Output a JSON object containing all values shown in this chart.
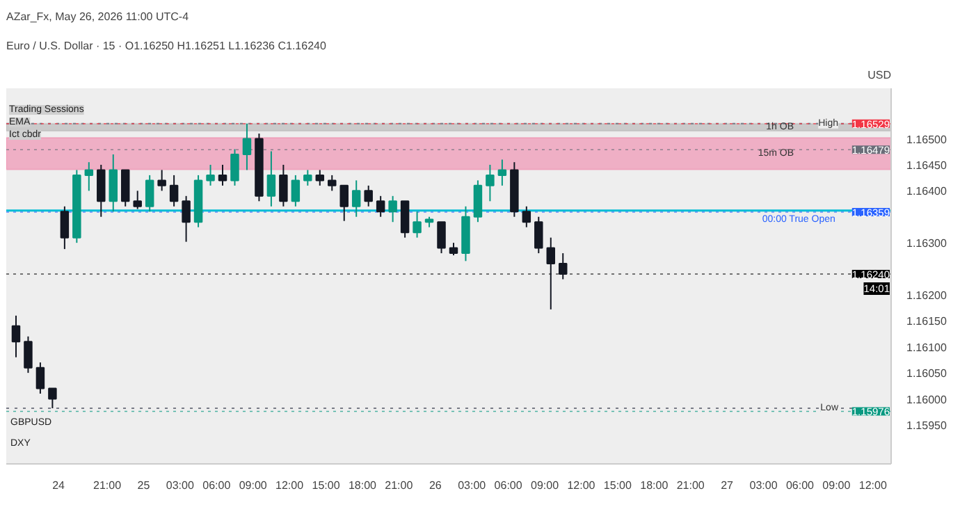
{
  "chart_data": {
    "type": "candlestick",
    "title": "Euro / U.S. Dollar · 15 ·  O1.16250 H1.16251 L1.16236 C1.16240",
    "subtitle": "AZar_Fx, May 26, 2026 11:00 UTC-4",
    "annotations": [
      "Trading Sessions",
      "EMA",
      "Ict cbdr",
      "USD",
      "GBPUSD",
      "DXY",
      "14:01",
      "00:00 True Open"
    ],
    "x": [
      "2026-05-24T13:30",
      "2026-05-24T14:30",
      "2026-05-24T15:30",
      "2026-05-24T16:30",
      "2026-05-24T17:30",
      "2026-05-24T18:30",
      "2026-05-24T19:30",
      "2026-05-24T20:30",
      "2026-05-24T21:30",
      "2026-05-24T22:30",
      "2026-05-24T23:30",
      "2026-05-25T00:30",
      "2026-05-25T01:30",
      "2026-05-25T02:30",
      "2026-05-25T03:30",
      "2026-05-25T04:30",
      "2026-05-25T05:30",
      "2026-05-25T06:30",
      "2026-05-25T07:30",
      "2026-05-25T08:30",
      "2026-05-25T09:30",
      "2026-05-25T10:30",
      "2026-05-25T11:30",
      "2026-05-25T12:30",
      "2026-05-25T13:30",
      "2026-05-25T14:30",
      "2026-05-25T15:30",
      "2026-05-25T16:30",
      "2026-05-25T17:30",
      "2026-05-25T18:30",
      "2026-05-25T19:30",
      "2026-05-25T20:30",
      "2026-05-25T21:30",
      "2026-05-25T22:30",
      "2026-05-25T23:30",
      "2026-05-26T00:30",
      "2026-05-26T01:30",
      "2026-05-26T02:30",
      "2026-05-26T03:30",
      "2026-05-26T04:30",
      "2026-05-26T05:30",
      "2026-05-26T06:30",
      "2026-05-26T07:30",
      "2026-05-26T08:30",
      "2026-05-26T09:30",
      "2026-05-26T10:30"
    ],
    "ohlc": [
      [
        1.1614,
        1.1616,
        1.1608,
        1.1611
      ],
      [
        1.1611,
        1.1612,
        1.1605,
        1.1606
      ],
      [
        1.1606,
        1.1607,
        1.1601,
        1.1602
      ],
      [
        1.1602,
        1.1602,
        1.15982,
        1.16
      ],
      [
        1.1636,
        1.1637,
        1.16288,
        1.1631
      ],
      [
        1.1631,
        1.1644,
        1.163,
        1.1643
      ],
      [
        1.1643,
        1.16455,
        1.164,
        1.1644
      ],
      [
        1.1644,
        1.1645,
        1.1635,
        1.1638
      ],
      [
        1.1638,
        1.1647,
        1.1636,
        1.1644
      ],
      [
        1.1644,
        1.1644,
        1.1637,
        1.1638
      ],
      [
        1.1638,
        1.164,
        1.16365,
        1.1637
      ],
      [
        1.1637,
        1.1643,
        1.1636,
        1.1642
      ],
      [
        1.1642,
        1.1644,
        1.164,
        1.1641
      ],
      [
        1.1641,
        1.1643,
        1.1637,
        1.1638
      ],
      [
        1.1638,
        1.1639,
        1.16302,
        1.1634
      ],
      [
        1.1634,
        1.1643,
        1.1633,
        1.1642
      ],
      [
        1.1642,
        1.1645,
        1.1641,
        1.1643
      ],
      [
        1.1643,
        1.1645,
        1.1641,
        1.1642
      ],
      [
        1.1642,
        1.1648,
        1.1641,
        1.1647
      ],
      [
        1.1647,
        1.16529,
        1.1644,
        1.165
      ],
      [
        1.165,
        1.1651,
        1.1638,
        1.1639
      ],
      [
        1.1639,
        1.16476,
        1.1637,
        1.1643
      ],
      [
        1.1643,
        1.1645,
        1.1637,
        1.1638
      ],
      [
        1.1638,
        1.1643,
        1.1637,
        1.1642
      ],
      [
        1.1642,
        1.1644,
        1.1641,
        1.1643
      ],
      [
        1.1643,
        1.1644,
        1.1641,
        1.1642
      ],
      [
        1.1642,
        1.1643,
        1.164,
        1.1641
      ],
      [
        1.1641,
        1.1641,
        1.16342,
        1.1637
      ],
      [
        1.1637,
        1.1642,
        1.1635,
        1.164
      ],
      [
        1.164,
        1.1641,
        1.1637,
        1.1638
      ],
      [
        1.1638,
        1.1639,
        1.1635,
        1.1636
      ],
      [
        1.1636,
        1.1639,
        1.1634,
        1.1638
      ],
      [
        1.1638,
        1.1638,
        1.1631,
        1.1632
      ],
      [
        1.1632,
        1.1636,
        1.1631,
        1.1634
      ],
      [
        1.1634,
        1.1635,
        1.1633,
        1.16345
      ],
      [
        1.1634,
        1.1634,
        1.1628,
        1.1629
      ],
      [
        1.1629,
        1.163,
        1.16276,
        1.1628
      ],
      [
        1.1628,
        1.1637,
        1.16265,
        1.1635
      ],
      [
        1.1635,
        1.1642,
        1.1634,
        1.1641
      ],
      [
        1.1641,
        1.1645,
        1.1638,
        1.1643
      ],
      [
        1.1643,
        1.1646,
        1.1641,
        1.1644
      ],
      [
        1.1644,
        1.16455,
        1.1635,
        1.1636
      ],
      [
        1.1636,
        1.1637,
        1.1633,
        1.1634
      ],
      [
        1.1634,
        1.1635,
        1.1628,
        1.1629
      ],
      [
        1.1629,
        1.1631,
        1.16172,
        1.1626
      ],
      [
        1.1626,
        1.1628,
        1.1623,
        1.1624
      ]
    ],
    "colors": [
      "#131722",
      "#131722",
      "#131722",
      "#131722",
      "#131722",
      "#089981",
      "#089981",
      "#131722",
      "#089981",
      "#131722",
      "#131722",
      "#089981",
      "#131722",
      "#131722",
      "#131722",
      "#089981",
      "#089981",
      "#131722",
      "#089981",
      "#089981",
      "#131722",
      "#089981",
      "#131722",
      "#089981",
      "#089981",
      "#131722",
      "#131722",
      "#131722",
      "#089981",
      "#131722",
      "#131722",
      "#089981",
      "#131722",
      "#089981",
      "#089981",
      "#131722",
      "#131722",
      "#089981",
      "#089981",
      "#089981",
      "#089981",
      "#131722",
      "#131722",
      "#131722",
      "#131722",
      "#131722"
    ],
    "xlim": [
      "2026-05-24T12:42",
      "2026-05-27T13:30"
    ],
    "xticks": [
      {
        "value": "2026-05-24T17:00",
        "label": "24"
      },
      {
        "value": "2026-05-24T21:00",
        "label": "21:00"
      },
      {
        "value": "2026-05-25T00:00",
        "label": "25"
      },
      {
        "value": "2026-05-25T03:00",
        "label": "03:00"
      },
      {
        "value": "2026-05-25T06:00",
        "label": "06:00"
      },
      {
        "value": "2026-05-25T09:00",
        "label": "09:00"
      },
      {
        "value": "2026-05-25T12:00",
        "label": "12:00"
      },
      {
        "value": "2026-05-25T15:00",
        "label": "15:00"
      },
      {
        "value": "2026-05-25T18:00",
        "label": "18:00"
      },
      {
        "value": "2026-05-25T21:00",
        "label": "21:00"
      },
      {
        "value": "2026-05-26T00:00",
        "label": "26"
      },
      {
        "value": "2026-05-26T03:00",
        "label": "03:00"
      },
      {
        "value": "2026-05-26T06:00",
        "label": "06:00"
      },
      {
        "value": "2026-05-26T09:00",
        "label": "09:00"
      },
      {
        "value": "2026-05-26T12:00",
        "label": "12:00"
      },
      {
        "value": "2026-05-26T15:00",
        "label": "15:00"
      },
      {
        "value": "2026-05-26T18:00",
        "label": "18:00"
      },
      {
        "value": "2026-05-26T21:00",
        "label": "21:00"
      },
      {
        "value": "2026-05-27T00:00",
        "label": "27"
      },
      {
        "value": "2026-05-27T03:00",
        "label": "03:00"
      },
      {
        "value": "2026-05-27T06:00",
        "label": "06:00"
      },
      {
        "value": "2026-05-27T09:00",
        "label": "09:00"
      },
      {
        "value": "2026-05-27T12:00",
        "label": "12:00"
      }
    ],
    "ylim": [
      1.15875,
      1.16597
    ],
    "yticks": [
      {
        "value": 1.1595,
        "label": "1.15950"
      },
      {
        "value": 1.16,
        "label": "1.16000"
      },
      {
        "value": 1.1605,
        "label": "1.16050"
      },
      {
        "value": 1.161,
        "label": "1.16100"
      },
      {
        "value": 1.1615,
        "label": "1.16150"
      },
      {
        "value": 1.162,
        "label": "1.16200"
      },
      {
        "value": 1.163,
        "label": "1.16300"
      },
      {
        "value": 1.164,
        "label": "1.16400"
      },
      {
        "value": 1.1645,
        "label": "1.16450"
      },
      {
        "value": 1.165,
        "label": "1.16500"
      }
    ],
    "ref_lines": [
      {
        "axis": "y",
        "value": 1.16529,
        "label": "High",
        "color": "#787b86",
        "line_style": "dotted"
      },
      {
        "axis": "y",
        "value": 1.15982,
        "label": "Low",
        "color": "#787b86",
        "line_style": "dotted"
      },
      {
        "axis": "y",
        "value": 1.16362,
        "color": "#00bcd4",
        "line_style": "solid"
      },
      {
        "axis": "y",
        "value": 1.16529,
        "label": "1.16529",
        "color": "#f23645"
      },
      {
        "axis": "y",
        "value": 1.16479,
        "label": "1.16479",
        "color": "#6a6d78"
      },
      {
        "axis": "y",
        "value": 1.16359,
        "label": "1.16359",
        "color": "#2962ff"
      },
      {
        "axis": "y",
        "value": 1.1624,
        "label": "1.16240",
        "color": "#000000"
      },
      {
        "axis": "y",
        "value": 1.15976,
        "label": "1.15976",
        "color": "#089981"
      }
    ],
    "bands": [
      {
        "axis": "y",
        "from": 1.16441,
        "to": 1.16502,
        "label": "15m OB",
        "color": "#f06292"
      },
      {
        "axis": "y",
        "from": 1.16515,
        "to": 1.16529,
        "label": "1h OB",
        "color": "#9e9e9e"
      }
    ],
    "grid": false
  }
}
